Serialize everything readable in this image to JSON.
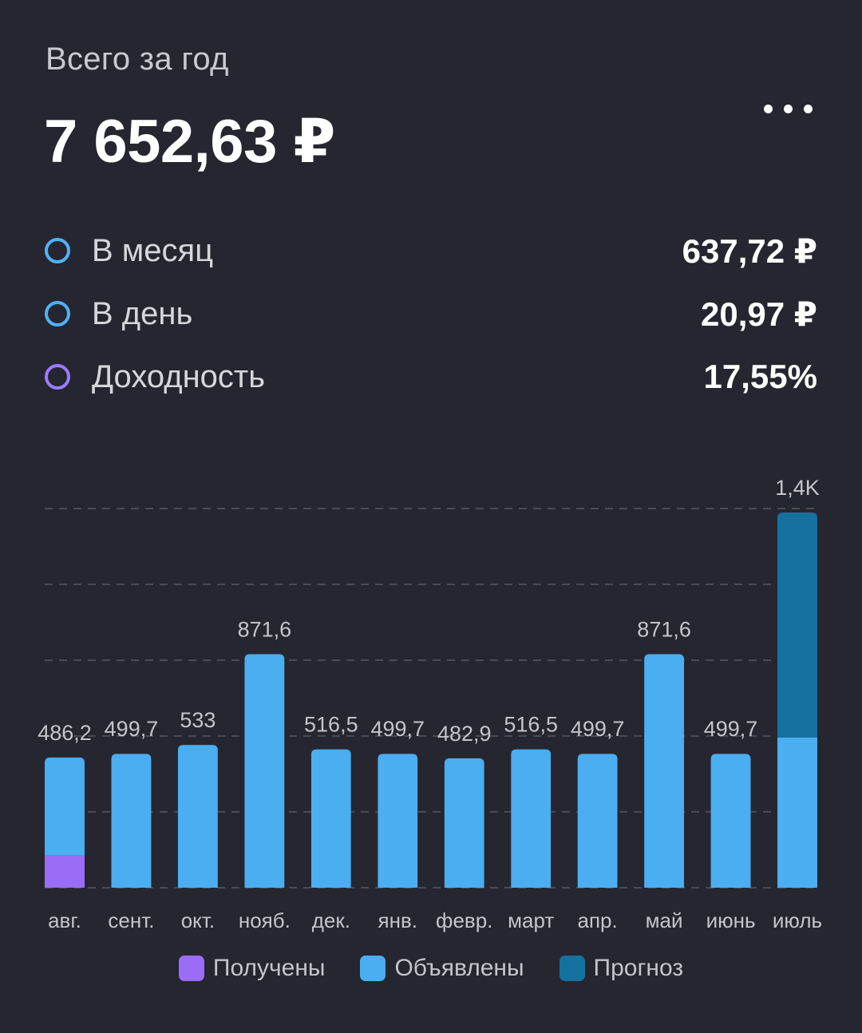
{
  "header": {
    "subtitle": "Всего за год",
    "total": "7 652,63 ₽",
    "more_icon": "more-horizontal-icon"
  },
  "stats": [
    {
      "label": "В месяц",
      "value": "637,72 ₽",
      "ring_color": "#4fb2f5"
    },
    {
      "label": "В день",
      "value": "20,97 ₽",
      "ring_color": "#4fb2f5"
    },
    {
      "label": "Доходность",
      "value": "17,55%",
      "ring_color": "#9b7bff"
    }
  ],
  "colors": {
    "background": "#262630",
    "received": "#9b6cf5",
    "announced": "#4aaef0",
    "forecast": "#15729f",
    "gridline": "#4a4b55",
    "label": "#c4c5cb"
  },
  "chart_data": {
    "type": "bar",
    "stacked": true,
    "categories": [
      "авг.",
      "сент.",
      "окт.",
      "нояб.",
      "дек.",
      "янв.",
      "февр.",
      "март",
      "апр.",
      "май",
      "июнь",
      "июль"
    ],
    "series": [
      {
        "name": "Получены",
        "color": "#9b6cf5",
        "values": [
          120,
          0,
          0,
          0,
          0,
          0,
          0,
          0,
          0,
          0,
          0,
          0
        ]
      },
      {
        "name": "Объявлены",
        "color": "#4aaef0",
        "values": [
          366.2,
          499.7,
          533,
          871.6,
          516.5,
          499.7,
          482.9,
          516.5,
          499.7,
          871.6,
          499.7,
          560
        ]
      },
      {
        "name": "Прогноз",
        "color": "#15729f",
        "values": [
          0,
          0,
          0,
          0,
          0,
          0,
          0,
          0,
          0,
          0,
          0,
          840
        ]
      }
    ],
    "totals_labels": [
      "486,2",
      "499,7",
      "533",
      "871,6",
      "516,5",
      "499,7",
      "482,9",
      "516,5",
      "499,7",
      "871,6",
      "499,7",
      "1,4K"
    ],
    "ylim": [
      0,
      1400
    ],
    "grid": true,
    "legend_position": "bottom"
  }
}
